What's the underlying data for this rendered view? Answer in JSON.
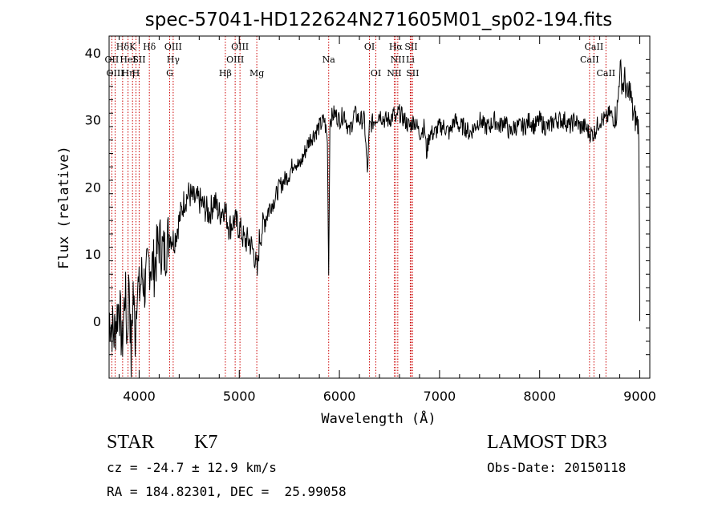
{
  "chart_data": {
    "type": "line",
    "title": "spec-57041-HD122624N271605M01_sp02-194.fits",
    "xlabel": "Wavelength (Å)",
    "ylabel": "Flux (relative)",
    "xlim": [
      3700,
      9100
    ],
    "ylim": [
      -8.5,
      42.5
    ],
    "xticks": [
      4000,
      5000,
      6000,
      7000,
      8000,
      9000
    ],
    "yticks": [
      0,
      10,
      20,
      30,
      40
    ],
    "grid": false,
    "series": [
      {
        "name": "spectrum",
        "x": [
          3700,
          3750,
          3800,
          3830,
          3860,
          3880,
          3900,
          3920,
          3940,
          3960,
          3980,
          4000,
          4030,
          4060,
          4100,
          4150,
          4200,
          4250,
          4300,
          4350,
          4400,
          4450,
          4500,
          4550,
          4600,
          4650,
          4700,
          4750,
          4800,
          4850,
          4900,
          4950,
          5000,
          5050,
          5100,
          5150,
          5180,
          5200,
          5250,
          5300,
          5350,
          5400,
          5450,
          5500,
          5550,
          5600,
          5650,
          5700,
          5750,
          5800,
          5850,
          5880,
          5893,
          5905,
          5950,
          6000,
          6050,
          6100,
          6150,
          6200,
          6250,
          6280,
          6300,
          6350,
          6400,
          6450,
          6500,
          6550,
          6563,
          6580,
          6600,
          6650,
          6700,
          6750,
          6800,
          6850,
          6870,
          6900,
          6950,
          7000,
          7050,
          7100,
          7150,
          7200,
          7250,
          7300,
          7350,
          7400,
          7450,
          7500,
          7550,
          7600,
          7650,
          7700,
          7750,
          7800,
          7850,
          7900,
          7950,
          8000,
          8050,
          8100,
          8150,
          8200,
          8250,
          8300,
          8350,
          8400,
          8450,
          8498,
          8542,
          8600,
          8662,
          8700,
          8750,
          8780,
          8800,
          8830,
          8850,
          8880,
          8900,
          8930,
          8960,
          8990,
          9000
        ],
        "values": [
          1,
          -2,
          3,
          -4,
          5,
          -3,
          7,
          -6,
          5,
          -2,
          6,
          4,
          7,
          5,
          9,
          8,
          12,
          10,
          13,
          12,
          15,
          18,
          19,
          18,
          18,
          17,
          16,
          18,
          16,
          17,
          14,
          15,
          14,
          12,
          12,
          10,
          7,
          12,
          15,
          17,
          18,
          20,
          21,
          22,
          24,
          23,
          25,
          27,
          28,
          29,
          30,
          27,
          7,
          30,
          31,
          30,
          31,
          28,
          31,
          30,
          30,
          22,
          29,
          30,
          31,
          30,
          30,
          31,
          29,
          31,
          31,
          30,
          29,
          30,
          28,
          29,
          25,
          28,
          28,
          29,
          29,
          28,
          30,
          29,
          29,
          28,
          29,
          30,
          29,
          29,
          30,
          29,
          30,
          28,
          29,
          29,
          29,
          30,
          29,
          30,
          29,
          29,
          30,
          30,
          30,
          29,
          30,
          29,
          29,
          28,
          28,
          30,
          30,
          31,
          30,
          32,
          38,
          35,
          36,
          33,
          35,
          31,
          30,
          29,
          0
        ]
      }
    ],
    "line_markers": [
      {
        "label": "Hδ",
        "wavelength": 3835,
        "row": 1
      },
      {
        "label": "OII",
        "wavelength": 3727,
        "row": 2
      },
      {
        "label": "HeI",
        "wavelength": 3889,
        "row": 2
      },
      {
        "label": "Hη",
        "wavelength": 3889,
        "row": 3
      },
      {
        "label": "OIII",
        "wavelength": 3760,
        "row": 3
      },
      {
        "label": "K",
        "wavelength": 3934,
        "row": 1
      },
      {
        "label": "H",
        "wavelength": 3968,
        "row": 3
      },
      {
        "label": "SII",
        "wavelength": 4000,
        "row": 2
      },
      {
        "label": "Hδ",
        "wavelength": 4102,
        "row": 1
      },
      {
        "label": "OIII",
        "wavelength": 4340,
        "row": 1
      },
      {
        "label": "Hγ",
        "wavelength": 4340,
        "row": 2
      },
      {
        "label": "G",
        "wavelength": 4305,
        "row": 3
      },
      {
        "label": "OIII",
        "wavelength": 5007,
        "row": 1
      },
      {
        "label": "OIII",
        "wavelength": 4959,
        "row": 2
      },
      {
        "label": "Hβ",
        "wavelength": 4861,
        "row": 3
      },
      {
        "label": "Mg",
        "wavelength": 5175,
        "row": 3
      },
      {
        "label": "Na",
        "wavelength": 5893,
        "row": 2
      },
      {
        "label": "OI",
        "wavelength": 6300,
        "row": 1
      },
      {
        "label": "OI",
        "wavelength": 6364,
        "row": 3
      },
      {
        "label": "Hα",
        "wavelength": 6563,
        "row": 1
      },
      {
        "label": "SII",
        "wavelength": 6716,
        "row": 1
      },
      {
        "label": "NII",
        "wavelength": 6583,
        "row": 2
      },
      {
        "label": "Li",
        "wavelength": 6708,
        "row": 2
      },
      {
        "label": "NII",
        "wavelength": 6548,
        "row": 3
      },
      {
        "label": "SII",
        "wavelength": 6731,
        "row": 3
      },
      {
        "label": "CaII",
        "wavelength": 8542,
        "row": 1
      },
      {
        "label": "CaII",
        "wavelength": 8498,
        "row": 2
      },
      {
        "label": "CaII",
        "wavelength": 8662,
        "row": 3
      }
    ],
    "marker_lines": [
      3727,
      3760,
      3835,
      3889,
      3934,
      3968,
      4000,
      4102,
      4305,
      4340,
      4861,
      4959,
      5007,
      5175,
      5893,
      6300,
      6364,
      6548,
      6563,
      6583,
      6708,
      6716,
      6731,
      8498,
      8542,
      8662
    ]
  },
  "info": {
    "object_class": "STAR",
    "subclass": "K7",
    "survey": "LAMOST DR3",
    "redshift": "cz = -24.7 ± 12.9 km/s",
    "obs_date": "Obs-Date: 20150118",
    "coords": "RA = 184.82301, DEC =  25.99058"
  },
  "colors": {
    "line": "#000000",
    "marker": "#cc0000",
    "background": "#ffffff"
  }
}
